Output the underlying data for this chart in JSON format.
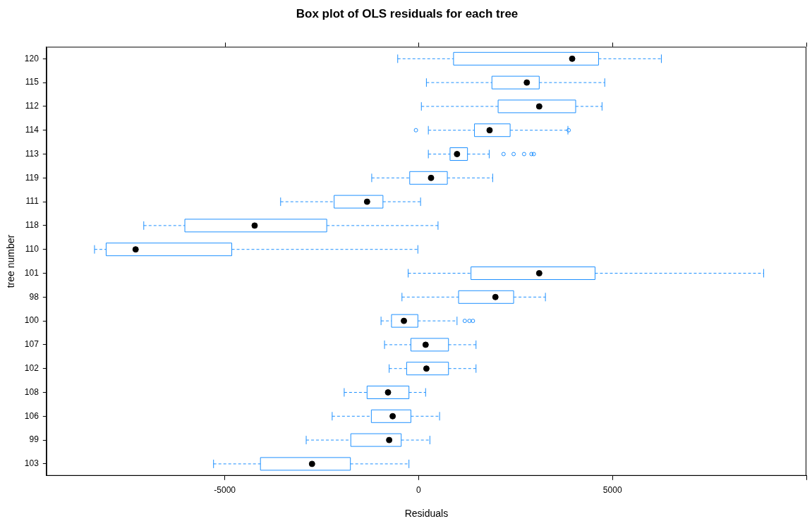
{
  "chart_data": {
    "type": "box",
    "title": "Box plot of OLS residuals for each tree",
    "xlabel": "Residuals",
    "ylabel": "tree number",
    "orientation": "horizontal",
    "color": "#1e90ff",
    "grid": false,
    "legend": false,
    "categories": [
      "120",
      "115",
      "112",
      "114",
      "113",
      "119",
      "111",
      "118",
      "110",
      "101",
      "98",
      "100",
      "107",
      "102",
      "108",
      "106",
      "99",
      "103"
    ],
    "xlim": [
      -9600,
      10000
    ],
    "xticks": [
      -5000,
      0,
      5000,
      {
        "value": 10000,
        "label": null
      }
    ],
    "boxes": [
      {
        "low": -540,
        "q1": 900,
        "median": 3960,
        "q3": 4640,
        "high": 6260
      },
      {
        "low": 200,
        "q1": 1890,
        "median": 2790,
        "q3": 3110,
        "high": 4800
      },
      {
        "low": 70,
        "q1": 2050,
        "median": 3110,
        "q3": 4050,
        "high": 4730
      },
      {
        "low": 250,
        "q1": 1440,
        "median": 1830,
        "q3": 2360,
        "high": 3850,
        "outliers": [
          -70,
          3870
        ]
      },
      {
        "low": 250,
        "q1": 810,
        "median": 990,
        "q3": 1260,
        "high": 1820,
        "outliers": [
          2190,
          2450,
          2720,
          2910,
          2970
        ]
      },
      {
        "low": -1210,
        "q1": -230,
        "median": 320,
        "q3": 740,
        "high": 1910
      },
      {
        "low": -3560,
        "q1": -2180,
        "median": -1330,
        "q3": -920,
        "high": 50
      },
      {
        "low": -7090,
        "q1": -6030,
        "median": -4230,
        "q3": -2370,
        "high": 500
      },
      {
        "low": -8360,
        "q1": -8060,
        "median": -7300,
        "q3": -4820,
        "high": -20
      },
      {
        "low": -270,
        "q1": 1350,
        "median": 3110,
        "q3": 4550,
        "high": 8900
      },
      {
        "low": -430,
        "q1": 1030,
        "median": 1980,
        "q3": 2450,
        "high": 3270
      },
      {
        "low": -970,
        "q1": -700,
        "median": -380,
        "q3": -20,
        "high": 990,
        "outliers": [
          1190,
          1310,
          1400
        ]
      },
      {
        "low": -880,
        "q1": -200,
        "median": 180,
        "q3": 770,
        "high": 1480
      },
      {
        "low": -760,
        "q1": -310,
        "median": 200,
        "q3": 770,
        "high": 1480
      },
      {
        "low": -1920,
        "q1": -1330,
        "median": -790,
        "q3": -250,
        "high": 180
      },
      {
        "low": -2230,
        "q1": -1220,
        "median": -670,
        "q3": -200,
        "high": 540
      },
      {
        "low": -2900,
        "q1": -1750,
        "median": -760,
        "q3": -450,
        "high": 290
      },
      {
        "low": -5290,
        "q1": -4080,
        "median": -2750,
        "q3": -1760,
        "high": -250
      }
    ]
  }
}
